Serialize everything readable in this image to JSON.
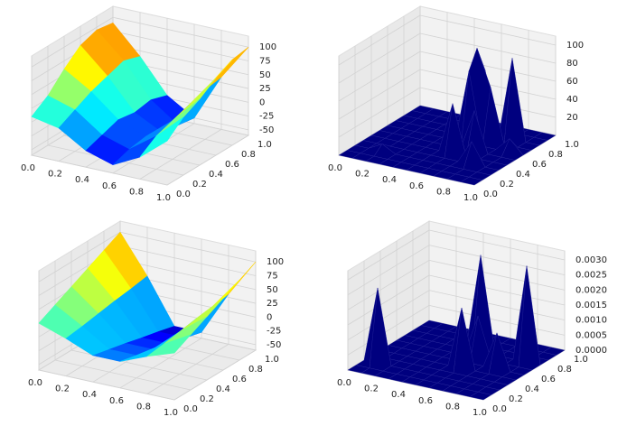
{
  "chart_data": [
    {
      "type": "surface3d",
      "colormap": "jet",
      "x": [
        0,
        0.2,
        0.4,
        0.6,
        0.8,
        1
      ],
      "y": [
        0,
        0.2,
        0.4,
        0.6,
        0.8,
        1
      ],
      "z": [
        [
          10,
          0,
          -30,
          -45,
          -20,
          20
        ],
        [
          30,
          15,
          -20,
          -35,
          0,
          45
        ],
        [
          60,
          30,
          -10,
          -30,
          10,
          60
        ],
        [
          85,
          40,
          -15,
          -40,
          20,
          80
        ],
        [
          95,
          50,
          -10,
          -45,
          30,
          95
        ],
        [
          90,
          40,
          -20,
          -50,
          35,
          100
        ]
      ],
      "xlim": [
        0,
        1
      ],
      "ylim": [
        0,
        1
      ],
      "zlim": [
        -60,
        120
      ],
      "xticks": [
        {
          "value": 0,
          "label": "0.0"
        },
        {
          "value": 0.2,
          "label": "0.2"
        },
        {
          "value": 0.4,
          "label": "0.4"
        },
        {
          "value": 0.6,
          "label": "0.6"
        },
        {
          "value": 0.8,
          "label": "0.8"
        },
        {
          "value": 1,
          "label": "1.0"
        }
      ],
      "yticks": [
        {
          "value": 0,
          "label": "0.0"
        },
        {
          "value": 0.2,
          "label": "0.2"
        },
        {
          "value": 0.4,
          "label": "0.4"
        },
        {
          "value": 0.6,
          "label": "0.6"
        },
        {
          "value": 0.8,
          "label": "0.8"
        },
        {
          "value": 1,
          "label": "1.0"
        }
      ],
      "zticks": [
        -50,
        -25,
        0,
        25,
        50,
        75,
        100
      ],
      "grid": true
    },
    {
      "type": "surface3d",
      "color": "#00007f",
      "x": [
        0,
        0.1,
        0.2,
        0.3,
        0.4,
        0.5,
        0.6,
        0.7,
        0.8,
        0.9,
        1
      ],
      "y": [
        0,
        0.1,
        0.2,
        0.3,
        0.4,
        0.5,
        0.6,
        0.7,
        0.8,
        0.9,
        1
      ],
      "z": [
        [
          0,
          0,
          0,
          0,
          0,
          0,
          0,
          0,
          0,
          0,
          0
        ],
        [
          0,
          0,
          0,
          0,
          0,
          0,
          0,
          0,
          0,
          0,
          0
        ],
        [
          0,
          0,
          8,
          0,
          0,
          0,
          0,
          0,
          0,
          0,
          0
        ],
        [
          0,
          0,
          0,
          0,
          0,
          0,
          0,
          0,
          25,
          0,
          0
        ],
        [
          0,
          0,
          0,
          0,
          0,
          0,
          55,
          0,
          0,
          0,
          0
        ],
        [
          0,
          0,
          0,
          0,
          0,
          0,
          0,
          45,
          0,
          0,
          0
        ],
        [
          0,
          0,
          0,
          0,
          0,
          0,
          80,
          0,
          0,
          15,
          0
        ],
        [
          0,
          0,
          0,
          0,
          0,
          0,
          100,
          60,
          0,
          0,
          0
        ],
        [
          0,
          0,
          0,
          0,
          0,
          0,
          70,
          0,
          90,
          0,
          0
        ],
        [
          0,
          0,
          0,
          0,
          0,
          0,
          0,
          0,
          0,
          0,
          0
        ],
        [
          0,
          0,
          0,
          0,
          0,
          0,
          0,
          0,
          0,
          0,
          0
        ]
      ],
      "xlim": [
        0,
        1
      ],
      "ylim": [
        0,
        1
      ],
      "zlim": [
        0,
        110
      ],
      "xticks": [
        {
          "value": 0,
          "label": "0.0"
        },
        {
          "value": 0.2,
          "label": "0.2"
        },
        {
          "value": 0.4,
          "label": "0.4"
        },
        {
          "value": 0.6,
          "label": "0.6"
        },
        {
          "value": 0.8,
          "label": "0.8"
        },
        {
          "value": 1,
          "label": "1.0"
        }
      ],
      "yticks": [
        {
          "value": 0,
          "label": "0.0"
        },
        {
          "value": 0.2,
          "label": "0.2"
        },
        {
          "value": 0.4,
          "label": "0.4"
        },
        {
          "value": 0.6,
          "label": "0.6"
        },
        {
          "value": 0.8,
          "label": "0.8"
        },
        {
          "value": 1,
          "label": "1.0"
        }
      ],
      "zticks": [
        20,
        40,
        60,
        80,
        100
      ],
      "grid": true
    },
    {
      "type": "surface3d",
      "colormap": "jet",
      "x": [
        0,
        0.2,
        0.4,
        0.6,
        0.8,
        1
      ],
      "y": [
        0,
        0.2,
        0.4,
        0.6,
        0.8,
        1
      ],
      "z": [
        [
          25,
          8,
          -12,
          -12,
          8,
          25
        ],
        [
          40,
          12,
          -19,
          -19,
          12,
          40
        ],
        [
          55,
          17,
          -26,
          -26,
          17,
          55
        ],
        [
          70,
          22,
          -34,
          -34,
          22,
          70
        ],
        [
          85,
          26,
          -41,
          -41,
          26,
          85
        ],
        [
          100,
          31,
          -49,
          -49,
          31,
          100
        ]
      ],
      "xlim": [
        0,
        1
      ],
      "ylim": [
        0,
        1
      ],
      "zlim": [
        -60,
        120
      ],
      "xticks": [
        {
          "value": 0,
          "label": "0.0"
        },
        {
          "value": 0.2,
          "label": "0.2"
        },
        {
          "value": 0.4,
          "label": "0.4"
        },
        {
          "value": 0.6,
          "label": "0.6"
        },
        {
          "value": 0.8,
          "label": "0.8"
        },
        {
          "value": 1,
          "label": "1.0"
        }
      ],
      "yticks": [
        {
          "value": 0,
          "label": "0.0"
        },
        {
          "value": 0.2,
          "label": "0.2"
        },
        {
          "value": 0.4,
          "label": "0.4"
        },
        {
          "value": 0.6,
          "label": "0.6"
        },
        {
          "value": 0.8,
          "label": "0.8"
        },
        {
          "value": 1,
          "label": "1.0"
        }
      ],
      "zticks": [
        -50,
        -25,
        0,
        25,
        50,
        75,
        100
      ],
      "grid": true
    },
    {
      "type": "surface3d",
      "color": "#00007f",
      "x": [
        0,
        0.1,
        0.2,
        0.3,
        0.4,
        0.5,
        0.6,
        0.7,
        0.8,
        0.9,
        1
      ],
      "y": [
        0,
        0.1,
        0.2,
        0.3,
        0.4,
        0.5,
        0.6,
        0.7,
        0.8,
        0.9,
        1
      ],
      "z": [
        [
          0,
          0,
          0,
          0,
          0,
          0,
          0,
          0,
          0,
          0,
          0
        ],
        [
          0,
          0,
          0,
          0,
          0,
          0,
          0,
          0,
          0,
          0,
          0
        ],
        [
          0,
          0.0025,
          0,
          0,
          0,
          0,
          0,
          0,
          0,
          0,
          0
        ],
        [
          0,
          0,
          0,
          0,
          0,
          0,
          0,
          0,
          0,
          0,
          0
        ],
        [
          0,
          0,
          0,
          0,
          0,
          0,
          0.002,
          0,
          0,
          0,
          0
        ],
        [
          0,
          0,
          0,
          0,
          0,
          0,
          0,
          0,
          0.0012,
          0,
          0
        ],
        [
          0,
          0,
          0,
          0,
          0,
          0,
          0.0014,
          0,
          0,
          0,
          0
        ],
        [
          0,
          0,
          0,
          0,
          0,
          0,
          0,
          0,
          0,
          0.0032,
          0
        ],
        [
          0,
          0,
          0,
          0,
          0,
          0.003,
          0,
          0,
          0,
          0,
          0
        ],
        [
          0,
          0,
          0,
          0,
          0,
          0,
          0,
          0,
          0,
          0,
          0
        ],
        [
          0,
          0,
          0,
          0,
          0,
          0,
          0,
          0,
          0,
          0,
          0
        ]
      ],
      "xlim": [
        0,
        1
      ],
      "ylim": [
        0,
        1
      ],
      "zlim": [
        0,
        0.0033
      ],
      "xticks": [
        {
          "value": 0,
          "label": "0.0"
        },
        {
          "value": 0.2,
          "label": "0.2"
        },
        {
          "value": 0.4,
          "label": "0.4"
        },
        {
          "value": 0.6,
          "label": "0.6"
        },
        {
          "value": 0.8,
          "label": "0.8"
        },
        {
          "value": 1,
          "label": "1.0"
        }
      ],
      "yticks": [
        {
          "value": 0,
          "label": "0.0"
        },
        {
          "value": 0.2,
          "label": "0.2"
        },
        {
          "value": 0.4,
          "label": "0.4"
        },
        {
          "value": 0.6,
          "label": "0.6"
        },
        {
          "value": 0.8,
          "label": "0.8"
        },
        {
          "value": 1,
          "label": "1.0"
        }
      ],
      "zticks": [
        {
          "value": 0,
          "label": "0.0000"
        },
        {
          "value": 0.0005,
          "label": "0.0005"
        },
        {
          "value": 0.001,
          "label": "0.0010"
        },
        {
          "value": 0.0015,
          "label": "0.0015"
        },
        {
          "value": 0.002,
          "label": "0.0020"
        },
        {
          "value": 0.0025,
          "label": "0.0025"
        },
        {
          "value": 0.003,
          "label": "0.0030"
        }
      ],
      "grid": true
    }
  ]
}
